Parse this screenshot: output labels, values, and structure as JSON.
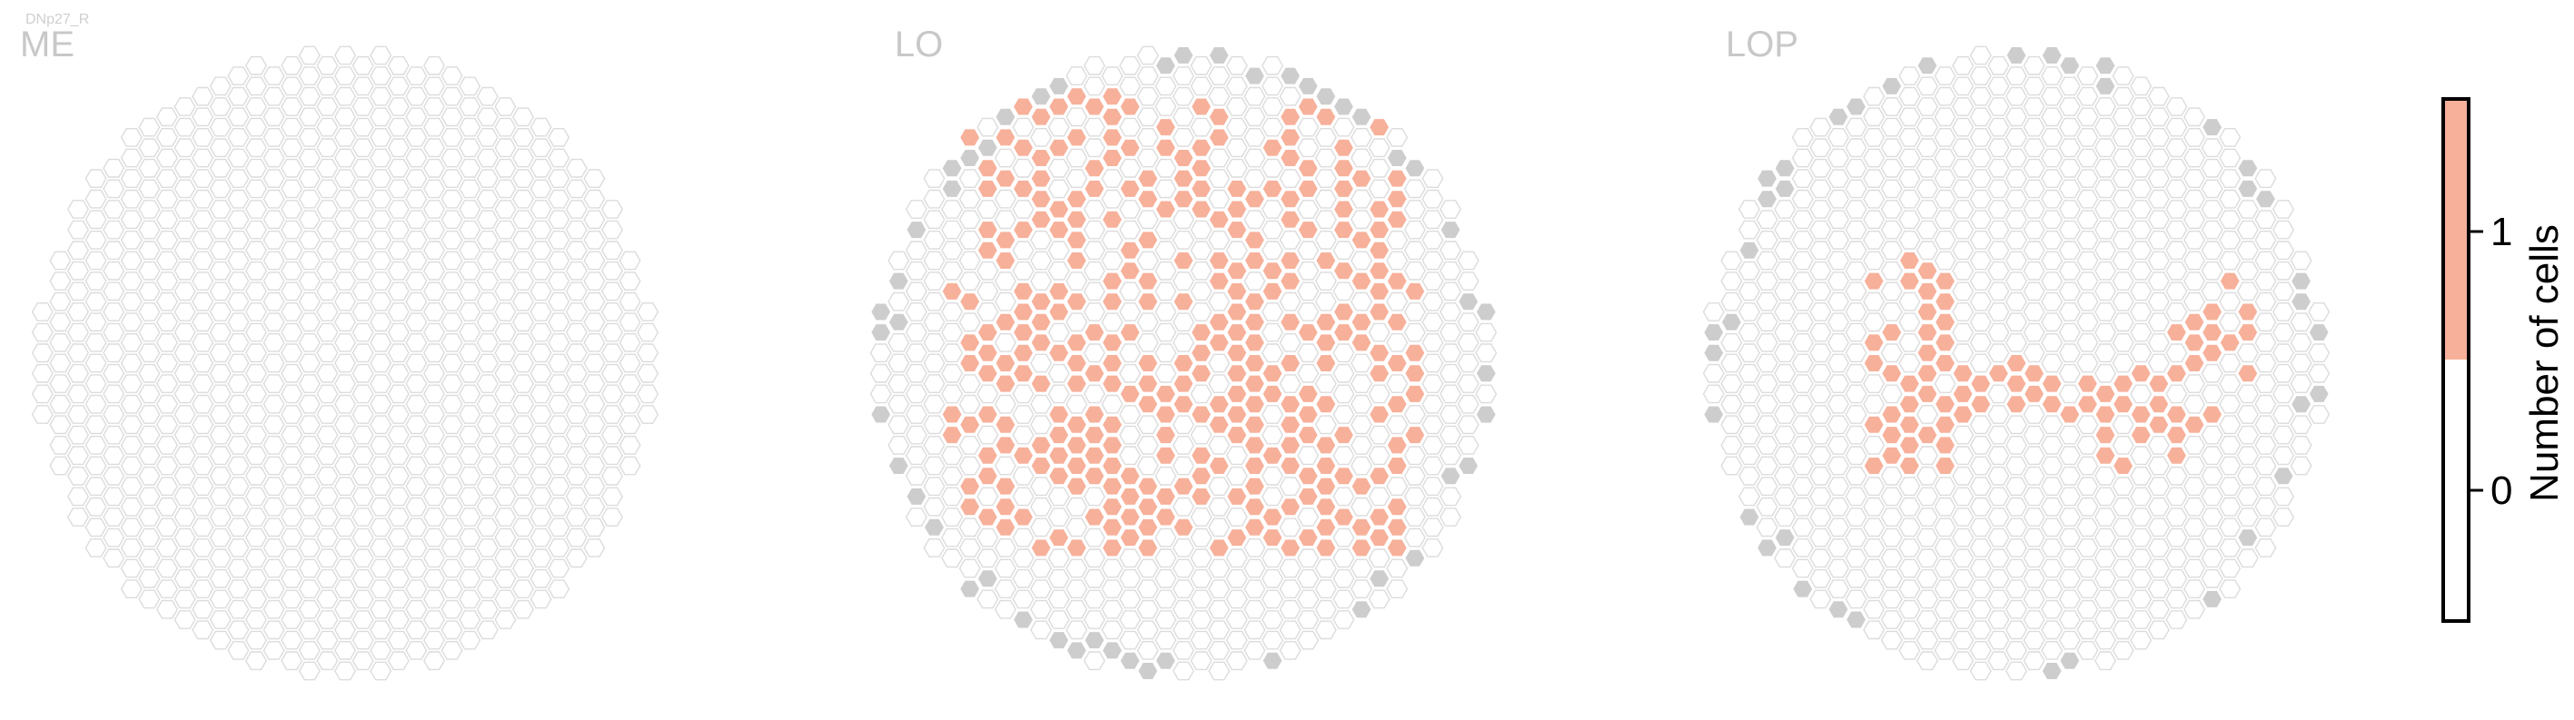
{
  "neuron_label": "DNp27_R",
  "chart_data": [
    {
      "type": "heatmap",
      "title": "ME",
      "grid": "hexagonal",
      "filled_columns": 0
    },
    {
      "type": "heatmap",
      "title": "LO",
      "grid": "hexagonal"
    },
    {
      "type": "heatmap",
      "title": "LOP",
      "grid": "hexagonal"
    }
  ],
  "colorbar": {
    "label": "Number of cells",
    "ticks": [
      "0",
      "1"
    ],
    "range": [
      0,
      1
    ],
    "colors": {
      "zero": "#ffffff",
      "one": "#f7b09a",
      "no_column": "#cdcdcd",
      "empty_edge": "#dcdcdc"
    }
  }
}
